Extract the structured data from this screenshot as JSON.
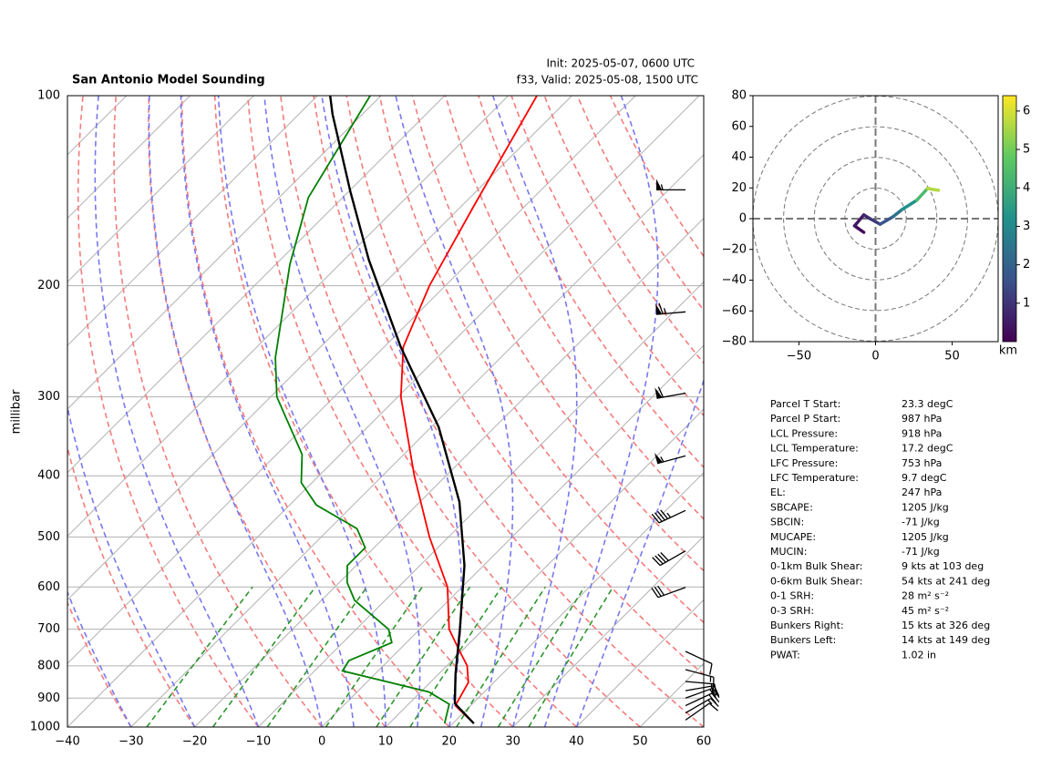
{
  "title": "San Antonio Model Sounding",
  "init": "Init: 2025-05-07, 0600 UTC",
  "valid": "f33, Valid: 2025-05-08, 1500 UTC",
  "chart_data": [
    {
      "type": "skewt",
      "ylabel": "millibar",
      "xlim": [
        -40,
        60
      ],
      "xticks": [
        {
          "value": -40,
          "label": "−40"
        },
        {
          "value": -30,
          "label": "−30"
        },
        {
          "value": -20,
          "label": "−20"
        },
        {
          "value": -10,
          "label": "−10"
        },
        0,
        10,
        20,
        30,
        40,
        50,
        60
      ],
      "ylim": [
        1000,
        100
      ],
      "log_y": true,
      "grid": true,
      "yticks": [
        1000,
        900,
        800,
        700,
        600,
        500,
        400,
        300,
        200,
        100
      ],
      "temperature": {
        "color": "#ff0000",
        "pressure": [
          987,
          925,
          850,
          800,
          750,
          700,
          600,
          500,
          400,
          300,
          250,
          200,
          150,
          100
        ],
        "values": [
          23.3,
          17.6,
          16.0,
          13.2,
          9.0,
          4.6,
          -2.3,
          -13.0,
          -25.0,
          -39.5,
          -47.0,
          -52.5,
          -58.0,
          -65.5
        ]
      },
      "dewpoint": {
        "color": "#008000",
        "pressure": [
          987,
          920,
          880,
          815,
          785,
          735,
          700,
          630,
          590,
          555,
          520,
          485,
          445,
          410,
          370,
          300,
          260,
          185,
          145,
          100
        ],
        "values": [
          18.7,
          16.4,
          11.3,
          -5.6,
          -6.2,
          -2.3,
          -4.9,
          -14.8,
          -18.8,
          -21.4,
          -21.4,
          -25.7,
          -35.8,
          -41.7,
          -46.0,
          -59.0,
          -65.4,
          -77.8,
          -85.4,
          -91.7
        ]
      },
      "parcel": {
        "color": "#000000",
        "pressure": [
          987,
          918,
          825,
          700,
          555,
          440,
          335,
          250,
          182,
          142,
          107,
          100
        ],
        "values": [
          23.3,
          17.2,
          12.7,
          6.3,
          -3.0,
          -13.8,
          -28.8,
          -47.4,
          -66.1,
          -79.7,
          -94.7,
          -98.0
        ]
      },
      "dry_adiabats": {
        "color": "#f47c7c",
        "t0": [
          -40,
          -30,
          -20,
          -10,
          0,
          10,
          20,
          30,
          40,
          50,
          60,
          70,
          80,
          90,
          100,
          110,
          120,
          130,
          140,
          150
        ]
      },
      "moist_adiabats": {
        "color": "#7878f0",
        "t0": [
          -50,
          -40,
          -30,
          -20,
          -10,
          0,
          5,
          10,
          15,
          20,
          25,
          30,
          35,
          40
        ]
      },
      "mixing_lines": {
        "color": "#2e962e",
        "ratios": [
          0.4,
          1,
          2,
          4,
          7,
          10,
          16,
          24,
          32
        ],
        "plim": [
          1000,
          600
        ]
      },
      "barbs": {
        "color": "#000000",
        "pressure": [
          141,
          220,
          296,
          372,
          454,
          526,
          601,
          759,
          811,
          847,
          876,
          900,
          925,
          950,
          975
        ],
        "speed": [
          55,
          65,
          60,
          55,
          45,
          40,
          30,
          10,
          15,
          20,
          20,
          20,
          20,
          15,
          10
        ],
        "direction": [
          270,
          265,
          260,
          255,
          245,
          240,
          250,
          115,
          105,
          95,
          80,
          70,
          65,
          60,
          55
        ]
      }
    },
    {
      "type": "hodograph",
      "u": [
        -7.7,
        -13.7,
        -7.7,
        -3.6,
        3.0,
        11.3,
        17.3,
        26.8,
        33.9,
        41.0
      ],
      "v": [
        -8.9,
        -4.7,
        2.4,
        0.0,
        -3.6,
        1.2,
        5.9,
        11.9,
        19.6,
        18.4
      ],
      "heights": [
        0.0,
        0.3,
        0.6,
        0.9,
        1.3,
        2.0,
        2.7,
        3.7,
        5.0,
        6.3
      ],
      "xlim": [
        -80,
        80
      ],
      "xticks": [
        {
          "value": -50,
          "label": "−50"
        },
        0,
        50
      ],
      "ylim": [
        -80,
        80
      ],
      "yticks": [
        {
          "value": -80,
          "label": "−80"
        },
        {
          "value": -60,
          "label": "−60"
        },
        {
          "value": -40,
          "label": "−40"
        },
        {
          "value": -20,
          "label": "−20"
        },
        0,
        20,
        40,
        60,
        80
      ],
      "rings": [
        20,
        40,
        60,
        80
      ],
      "colormap": "viridis",
      "clim": [
        0,
        6.4
      ],
      "cticks": [
        1,
        2,
        3,
        4,
        5,
        6
      ],
      "clabel": "km"
    }
  ],
  "parameters": [
    {
      "label": "Parcel T Start:",
      "value": "23.3 degC"
    },
    {
      "label": "Parcel P Start:",
      "value": "987 hPa"
    },
    {
      "label": "LCL Pressure:",
      "value": "918 hPa"
    },
    {
      "label": "LCL Temperature:",
      "value": "17.2 degC"
    },
    {
      "label": "LFC Pressure:",
      "value": "753 hPa"
    },
    {
      "label": "LFC Temperature:",
      "value": "9.7 degC"
    },
    {
      "label": "EL:",
      "value": "247 hPa"
    },
    {
      "label": "SBCAPE:",
      "value": "1205 J/kg"
    },
    {
      "label": "SBCIN:",
      "value": "-71 J/kg"
    },
    {
      "label": "MUCAPE:",
      "value": "1205 J/kg"
    },
    {
      "label": "MUCIN:",
      "value": "-71 J/kg"
    },
    {
      "label": "0-1km Bulk Shear:",
      "value": "9 kts at 103 deg"
    },
    {
      "label": "0-6km Bulk Shear:",
      "value": "54 kts at 241 deg"
    },
    {
      "label": "0-1 SRH:",
      "value": "28 m² s⁻²"
    },
    {
      "label": "0-3 SRH:",
      "value": "45 m² s⁻²"
    },
    {
      "label": "Bunkers Right:",
      "value": "15 kts at 326 deg"
    },
    {
      "label": "Bunkers Left:",
      "value": "14 kts at 149 deg"
    },
    {
      "label": "PWAT:",
      "value": "1.02 in"
    }
  ]
}
